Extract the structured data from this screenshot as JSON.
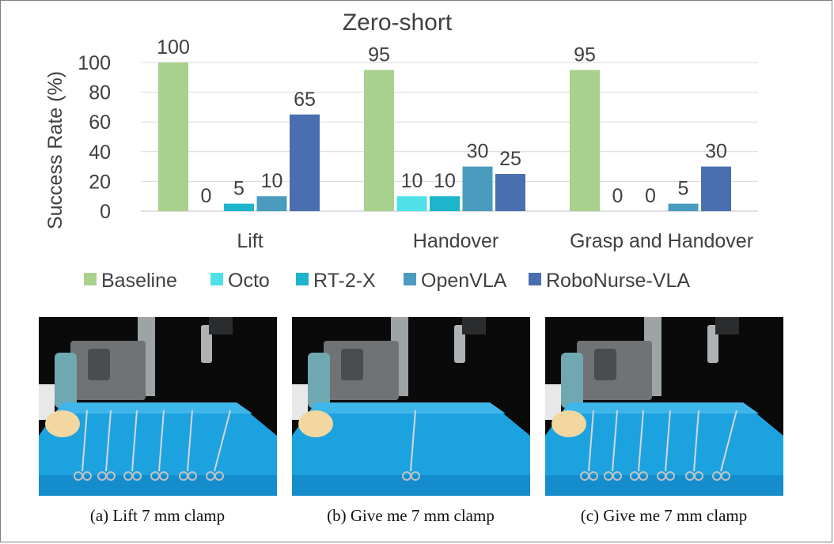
{
  "chart_data": {
    "type": "bar",
    "title": "Zero-short",
    "ylabel": "Success Rate (%)",
    "xlabel": "",
    "ylim": [
      0,
      100
    ],
    "yticks": [
      0,
      20,
      40,
      60,
      80,
      100
    ],
    "grid": true,
    "legend": "bottom",
    "categories": [
      "Lift",
      "Handover",
      "Grasp and Handover"
    ],
    "series": [
      {
        "name": "Baseline",
        "color": "#a9d18e",
        "values": [
          100,
          95,
          95
        ]
      },
      {
        "name": "Octo",
        "color": "#4fe0e8",
        "values": [
          0,
          10,
          0
        ]
      },
      {
        "name": "RT-2-X",
        "color": "#1eb4cc",
        "values": [
          5,
          10,
          0
        ]
      },
      {
        "name": "OpenVLA",
        "color": "#4a9cbf",
        "values": [
          10,
          30,
          5
        ]
      },
      {
        "name": "RoboNurse-VLA",
        "color": "#4a6fb0",
        "values": [
          65,
          25,
          30
        ]
      }
    ]
  },
  "panels": [
    {
      "caption": "(a) Lift 7 mm clamp",
      "clamps": 6,
      "hand": true
    },
    {
      "caption": "(b) Give me 7 mm clamp",
      "clamps": 1,
      "hand": true
    },
    {
      "caption": "(c) Give me 7 mm clamp",
      "clamps": 6,
      "hand": true
    }
  ]
}
